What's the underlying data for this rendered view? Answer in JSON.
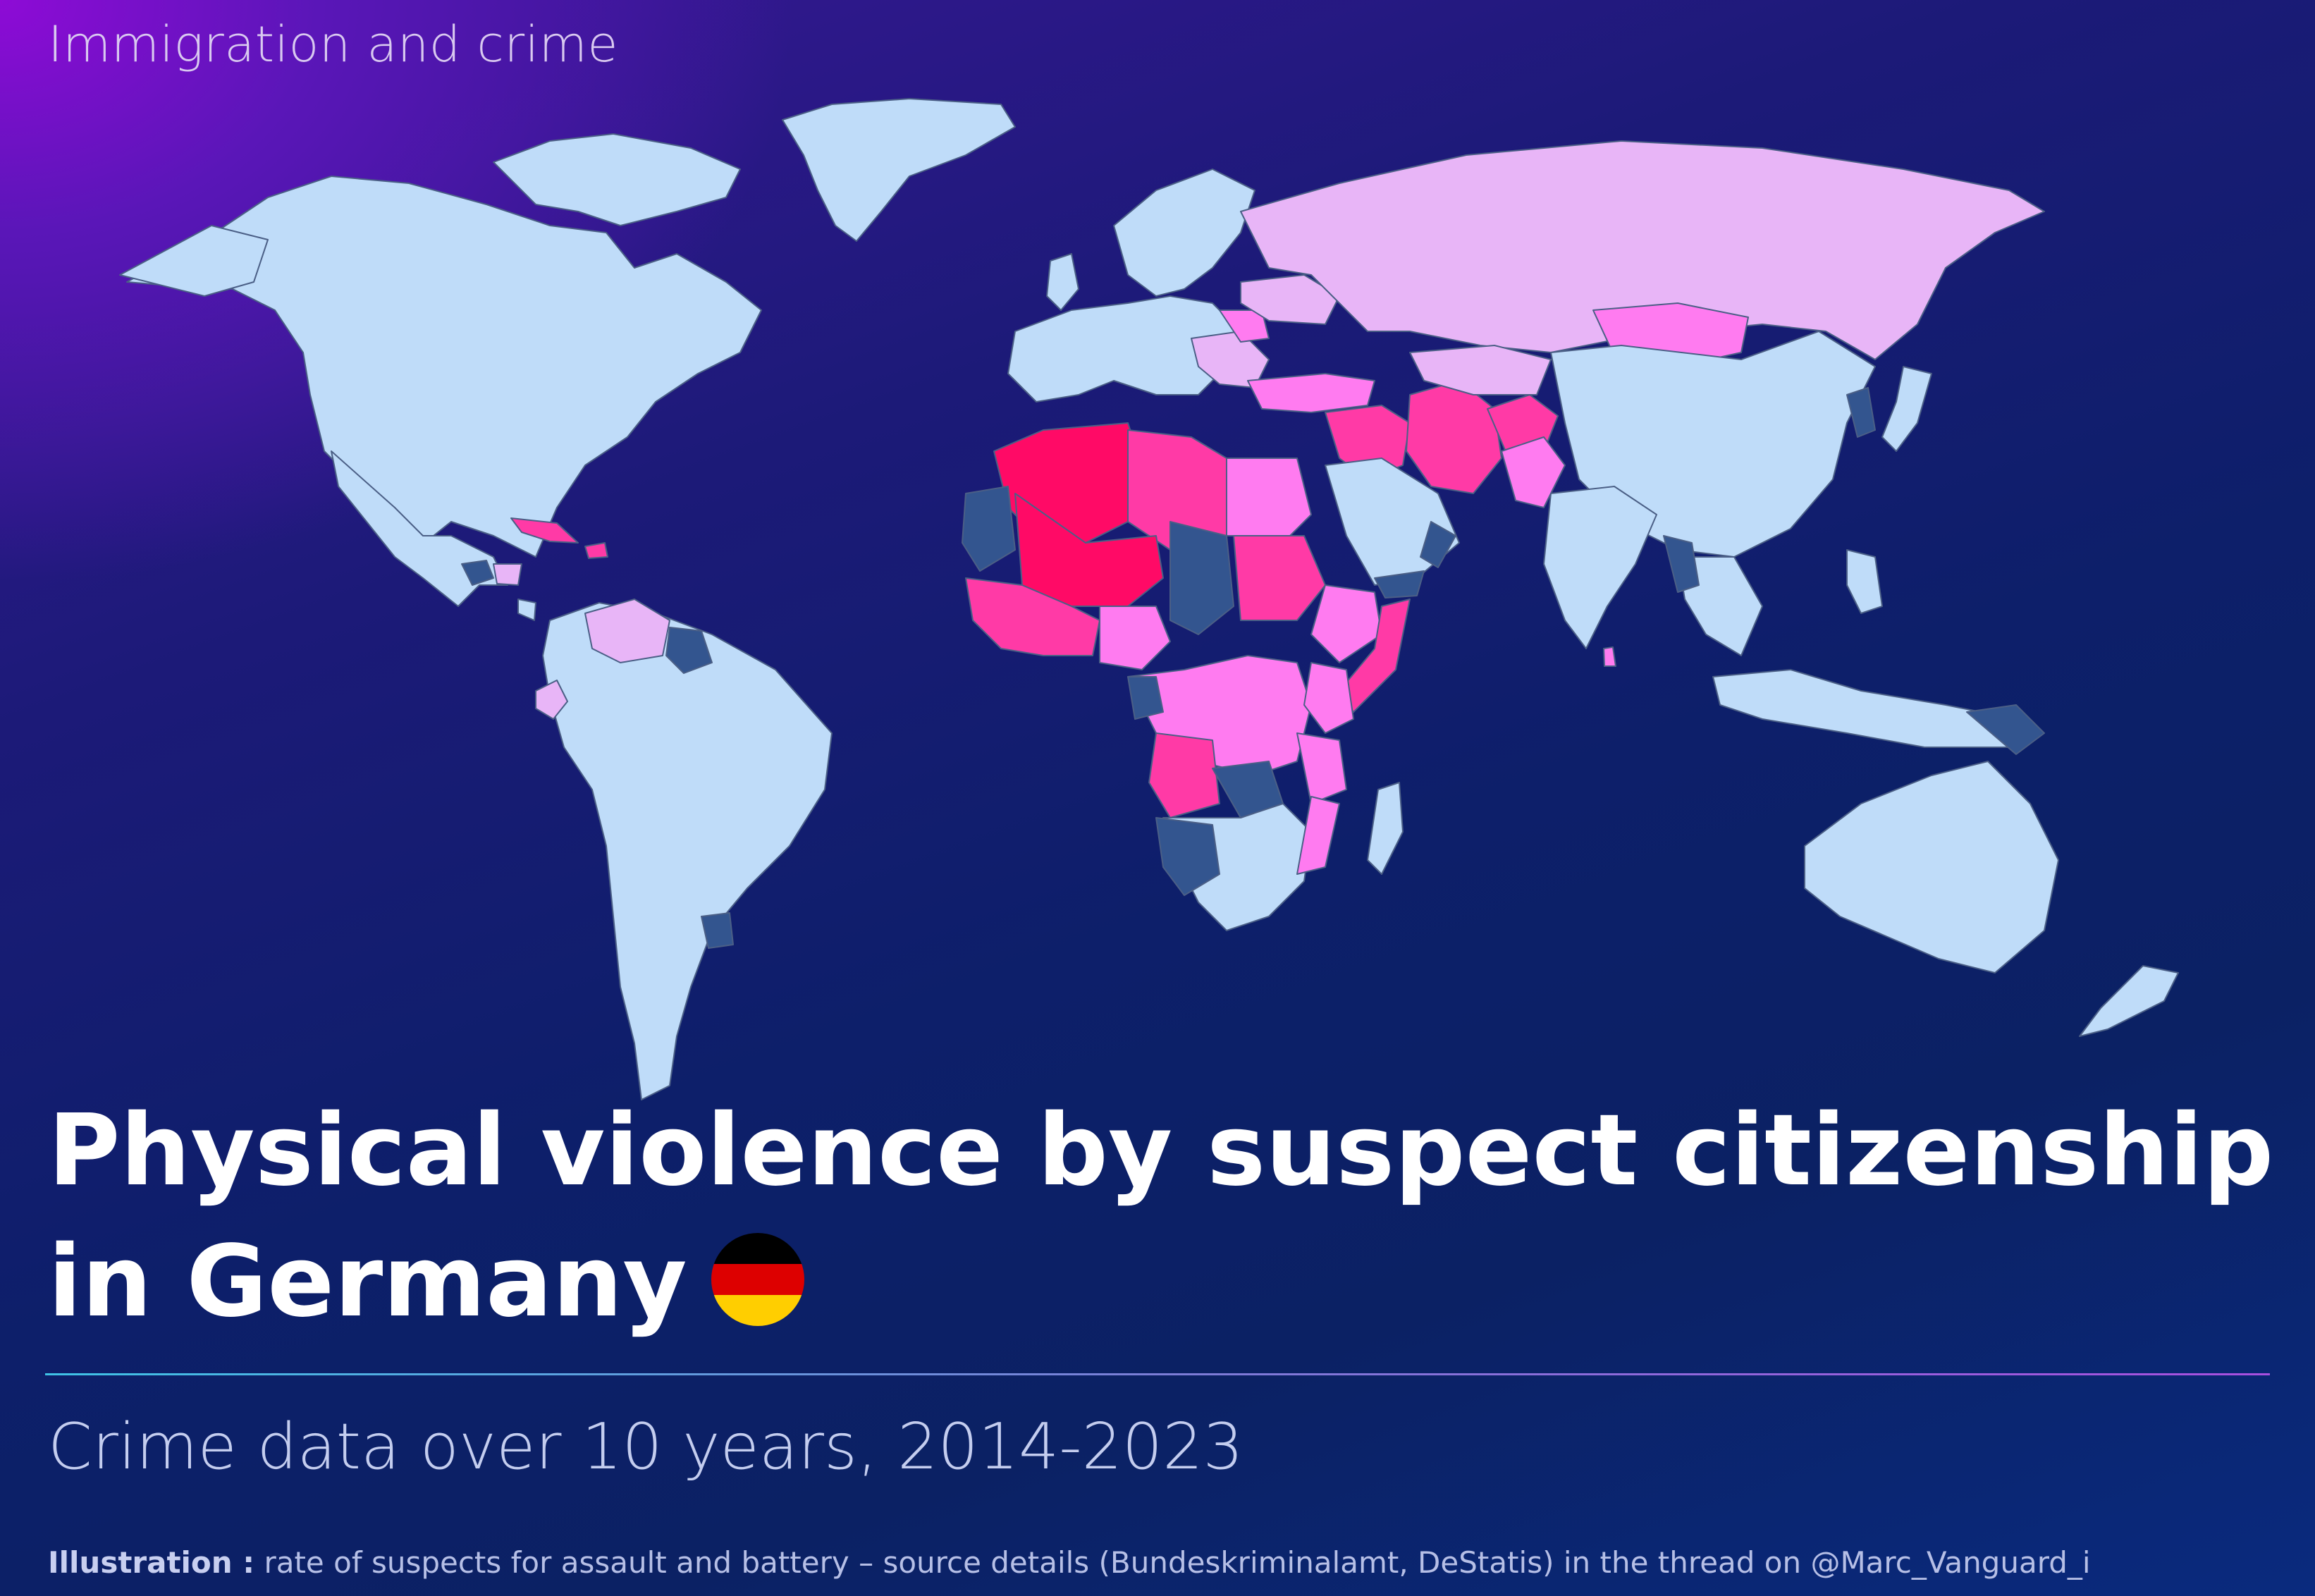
{
  "header": {
    "kicker": "Immigration and crime"
  },
  "title": {
    "line1": "Physical violence by suspect citizenship",
    "line2": "in Germany"
  },
  "subtitle": "Crime data over 10 years, 2014-2023",
  "footer": {
    "lead": "Illustration :",
    "text": " rate of suspects for assault and battery – source details (Bundeskriminalamt, DeStatis) in the thread on @Marc_Vanguard_i"
  },
  "flag": {
    "colors": [
      "#000000",
      "#dd0000",
      "#ffce00"
    ]
  },
  "map": {
    "palette": {
      "low": "#bfdcf9",
      "lowest": "#33558f",
      "medium": "#e8b5f7",
      "high": "#ff7bf0",
      "higher": "#ff3aa6",
      "highest": "#ff0a66",
      "ocean": "transparent",
      "border": "#5a6b8f"
    }
  }
}
